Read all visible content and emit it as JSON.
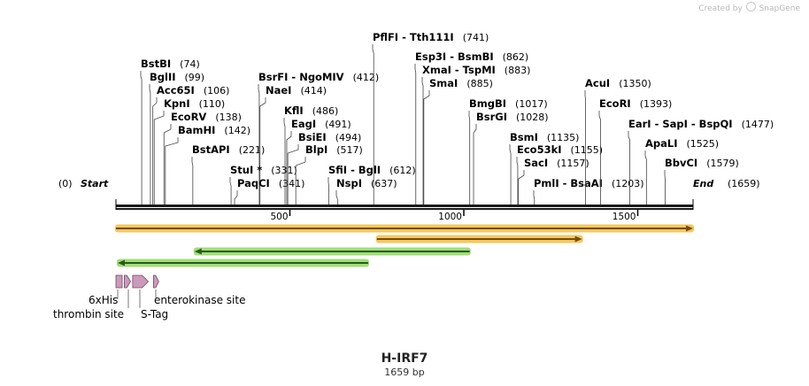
{
  "credit": {
    "prefix": "Created by",
    "brand": "SnapGene"
  },
  "plasmid": {
    "name": "H-IRF7",
    "length_label": "1659 bp",
    "length": 1659
  },
  "ends": [
    {
      "name": "Start",
      "pos": 0,
      "label": "(0)"
    },
    {
      "name": "End",
      "pos": 1659,
      "label": "(1659)"
    }
  ],
  "ticks": [
    {
      "pos": 500,
      "label": "500"
    },
    {
      "pos": 1000,
      "label": "1000"
    },
    {
      "pos": 1500,
      "label": "1500"
    }
  ],
  "sites": [
    {
      "name": "BstBI",
      "pos_label": "(74)",
      "pos": 74
    },
    {
      "name": "BglII",
      "pos_label": "(99)",
      "pos": 99
    },
    {
      "name": "Acc65I",
      "pos_label": "(106)",
      "pos": 106
    },
    {
      "name": "KpnI",
      "pos_label": "(110)",
      "pos": 110
    },
    {
      "name": "EcoRV",
      "pos_label": "(138)",
      "pos": 138
    },
    {
      "name": "BamHI",
      "pos_label": "(142)",
      "pos": 142
    },
    {
      "name": "BstAPI",
      "pos_label": "(221)",
      "pos": 221
    },
    {
      "name": "BsrFI  -  NgoMIV",
      "pos_label": "(412)",
      "pos": 412
    },
    {
      "name": "NaeI",
      "pos_label": "(414)",
      "pos": 414
    },
    {
      "name": "StuI *",
      "pos_label": "(331)",
      "pos": 331
    },
    {
      "name": "PaqCI",
      "pos_label": "(341)",
      "pos": 341
    },
    {
      "name": "KflI",
      "pos_label": "(486)",
      "pos": 486
    },
    {
      "name": "EagI",
      "pos_label": "(491)",
      "pos": 491
    },
    {
      "name": "BsiEI",
      "pos_label": "(494)",
      "pos": 494
    },
    {
      "name": "BlpI",
      "pos_label": "(517)",
      "pos": 517
    },
    {
      "name": "SfiI  -  BglI",
      "pos_label": "(612)",
      "pos": 612
    },
    {
      "name": "NspI",
      "pos_label": "(637)",
      "pos": 637
    },
    {
      "name": "PflFI  -  Tth111I",
      "pos_label": "(741)",
      "pos": 741
    },
    {
      "name": "Esp3I  -  BsmBI",
      "pos_label": "(862)",
      "pos": 862
    },
    {
      "name": "XmaI  -  TspMI",
      "pos_label": "(883)",
      "pos": 883
    },
    {
      "name": "SmaI",
      "pos_label": "(885)",
      "pos": 885
    },
    {
      "name": "BmgBI",
      "pos_label": "(1017)",
      "pos": 1017
    },
    {
      "name": "BsrGI",
      "pos_label": "(1028)",
      "pos": 1028
    },
    {
      "name": "BsmI",
      "pos_label": "(1135)",
      "pos": 1135
    },
    {
      "name": "Eco53kI",
      "pos_label": "(1155)",
      "pos": 1155
    },
    {
      "name": "SacI",
      "pos_label": "(1157)",
      "pos": 1157
    },
    {
      "name": "PmlI  -  BsaAI",
      "pos_label": "(1203)",
      "pos": 1203
    },
    {
      "name": "AcuI",
      "pos_label": "(1350)",
      "pos": 1350
    },
    {
      "name": "EcoRI",
      "pos_label": "(1393)",
      "pos": 1393
    },
    {
      "name": "EarI  -  SapI  -  BspQI",
      "pos_label": "(1477)",
      "pos": 1477
    },
    {
      "name": "ApaLI",
      "pos_label": "(1525)",
      "pos": 1525
    },
    {
      "name": "BbvCI",
      "pos_label": "(1579)",
      "pos": 1579
    }
  ],
  "orfs": [
    {
      "start": 0,
      "end": 1659,
      "direction": "forward",
      "color": "#f0c040"
    },
    {
      "start": 750,
      "end": 1340,
      "direction": "forward",
      "color": "#f0c040"
    },
    {
      "start": 226,
      "end": 1017,
      "direction": "reverse",
      "color": "#8ed860"
    },
    {
      "start": 5,
      "end": 725,
      "direction": "reverse",
      "color": "#8ed860"
    }
  ],
  "features": [
    {
      "label": "6xHis",
      "start": 0,
      "end": 18,
      "type": "box",
      "color": "#cc99bb"
    },
    {
      "label": "thrombin site",
      "start": 24,
      "end": 42,
      "type": "arrow",
      "color": "#cc99bb"
    },
    {
      "label": "S-Tag",
      "start": 48,
      "end": 93,
      "type": "arrow",
      "color": "#cc99bb"
    },
    {
      "label": "enterokinase site",
      "start": 108,
      "end": 123,
      "type": "arrow",
      "color": "#cc99bb"
    }
  ],
  "colors": {
    "backbone": "#1a1a1a",
    "feature": "#cc99bb",
    "orf_fwd": "#f0c040",
    "orf_rev": "#8ed860",
    "text": "#000000"
  }
}
